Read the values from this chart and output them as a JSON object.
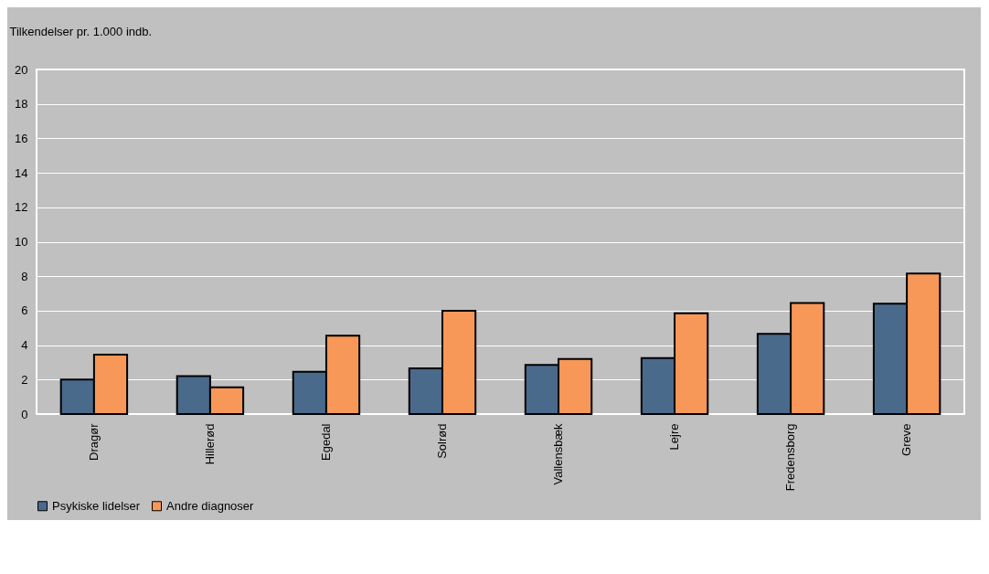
{
  "chart_data": {
    "type": "bar",
    "ylabel": "Tilkendelser pr. 1.000 indb.",
    "categories": [
      "Dragør",
      "Hillerød",
      "Egedal",
      "Solrød",
      "Vallensbæk",
      "Lejre",
      "Fredensborg",
      "Greve"
    ],
    "series": [
      {
        "name": "Psykiske lidelser",
        "color": "#4a6a8c",
        "values": [
          2.0,
          2.2,
          2.45,
          2.65,
          2.85,
          3.25,
          4.65,
          6.4
        ]
      },
      {
        "name": "Andre diagnoser",
        "color": "#f79858",
        "values": [
          3.45,
          1.55,
          4.55,
          6.0,
          3.2,
          5.85,
          6.45,
          8.15
        ]
      }
    ],
    "ylim": [
      0,
      20
    ],
    "yticks": [
      0,
      2,
      4,
      6,
      8,
      10,
      12,
      14,
      16,
      18,
      20
    ],
    "grid": "y",
    "legend": "bottom"
  }
}
